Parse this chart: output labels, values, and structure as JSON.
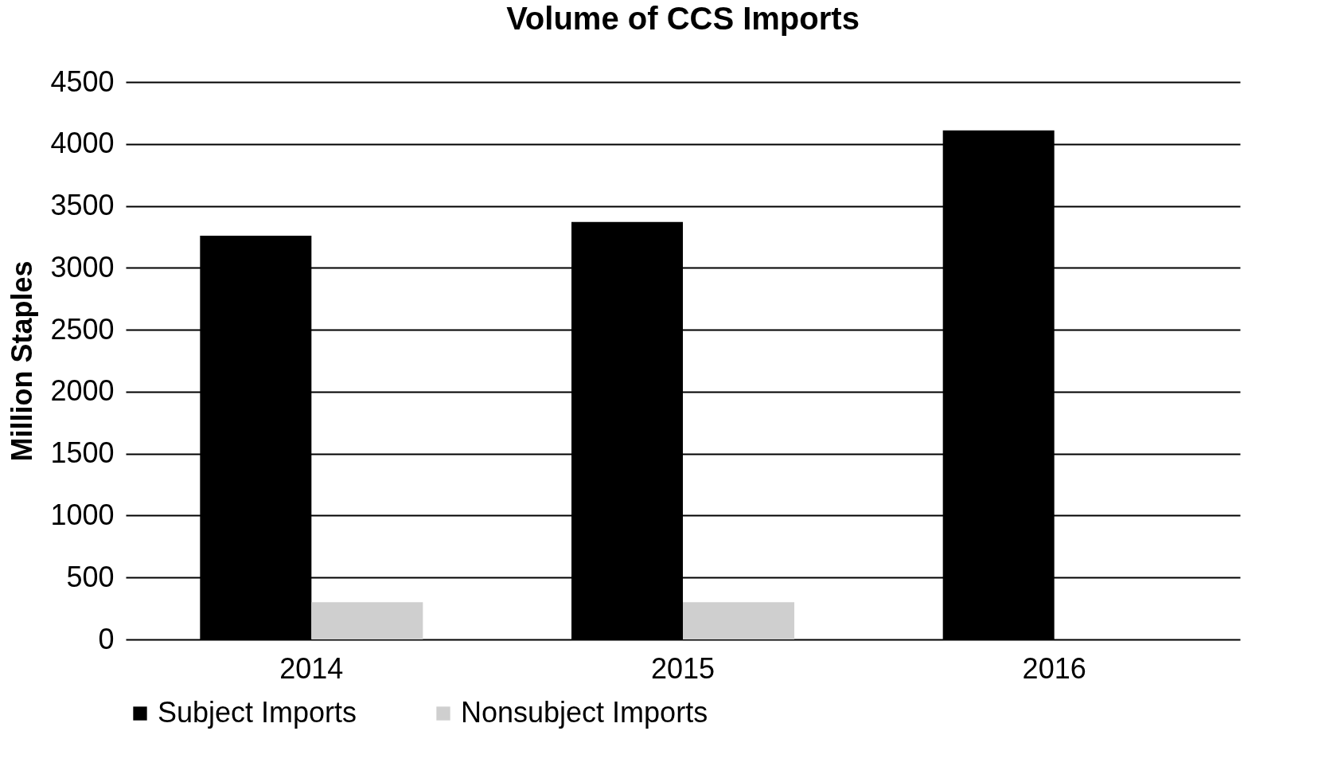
{
  "chart_data": {
    "type": "bar",
    "title": "Volume of CCS Imports",
    "ylabel": "Million  Staples",
    "categories": [
      "2014",
      "2015",
      "2016"
    ],
    "series": [
      {
        "name": "Subject Imports",
        "color": "#000000",
        "values": [
          3260,
          3370,
          4110
        ]
      },
      {
        "name": "Nonsubject Imports",
        "color": "#cfcfcf",
        "values": [
          300,
          300,
          null
        ]
      }
    ],
    "ylim": [
      0,
      4500
    ],
    "yticks": [
      0,
      500,
      1000,
      1500,
      2000,
      2500,
      3000,
      3500,
      4000,
      4500
    ],
    "grid": "y",
    "legend": "bottom"
  }
}
